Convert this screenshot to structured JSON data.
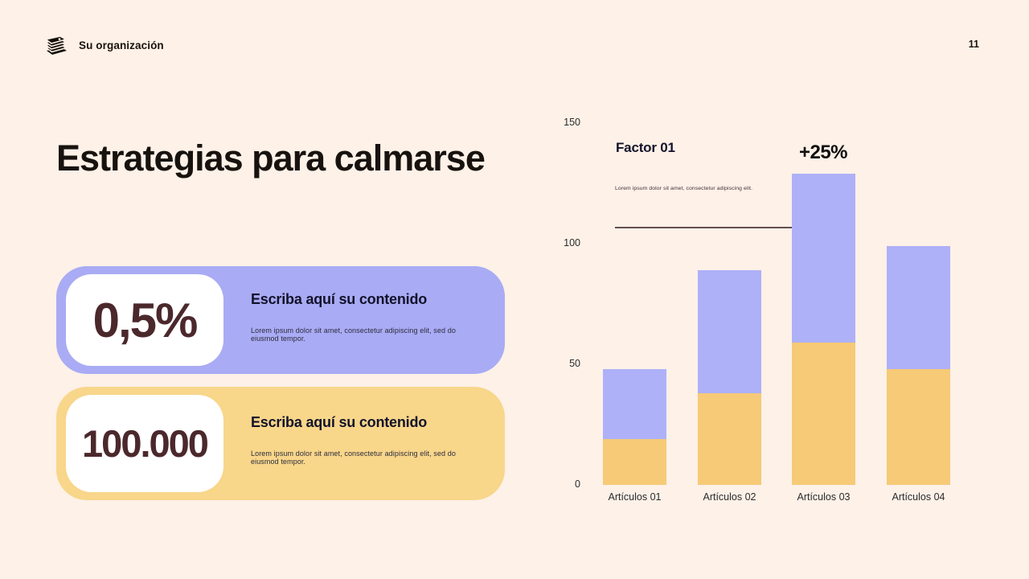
{
  "header": {
    "brand_name": "Su organización",
    "brand_icon": "books-stack-icon",
    "page_number": "11"
  },
  "title": "Estrategias para calmarse",
  "stat_cards": [
    {
      "value": "0,5%",
      "heading": "Escriba aquí su contenido",
      "body": "Lorem ipsum dolor sit amet, consectetur adipiscing elit, sed do eiusmod tempor.",
      "accent_color": "#a9abf4"
    },
    {
      "value": "100.000",
      "heading": "Escriba aquí su contenido",
      "body": "Lorem ipsum dolor sit amet, consectetur adipiscing elit, sed do eiusmod tempor.",
      "accent_color": "#f8d68a"
    }
  ],
  "chart_data": {
    "type": "bar",
    "stacked": true,
    "categories": [
      "Artículos 01",
      "Artículos 02",
      "Artículos 03",
      "Artículos 04"
    ],
    "series": [
      {
        "name": "serie-inferior",
        "color": "#f6ca77",
        "values": [
          19,
          38,
          59,
          48
        ]
      },
      {
        "name": "serie-superior",
        "color": "#aeb1f8",
        "values": [
          29,
          51,
          70,
          51
        ]
      }
    ],
    "totals": [
      48,
      89,
      129,
      99
    ],
    "ylim": [
      0,
      150
    ],
    "yticks": [
      0,
      50,
      100,
      150
    ],
    "grid": false,
    "annotations": {
      "factor_label": "Factor 01",
      "factor_description": "Lorem ipsum dolor sit amet, consectetur adipiscing elit.",
      "callout_label": "+25%",
      "callout_target": "Artículos 03",
      "callout_color": "#33191d"
    }
  }
}
